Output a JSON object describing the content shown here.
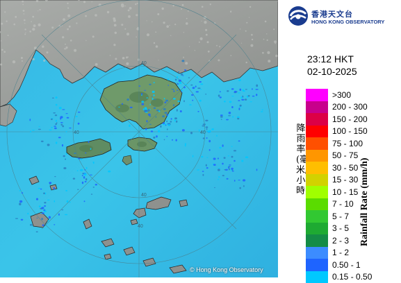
{
  "organization": {
    "name_cn": "香港天文台",
    "name_en": "HONG KONG OBSERVATORY"
  },
  "timestamp": {
    "time": "23:12 HKT",
    "date": "02-10-2025"
  },
  "legend": {
    "title_en": "Rainfall Rate (mm/h)",
    "title_cn": "降雨率(毫米/小時)",
    "items": [
      {
        "label": ">300",
        "color": "#ff00ff"
      },
      {
        "label": "200 - 300",
        "color": "#c8008c"
      },
      {
        "label": "150 - 200",
        "color": "#dc0046"
      },
      {
        "label": "100 - 150",
        "color": "#ff0000"
      },
      {
        "label": "75 - 100",
        "color": "#ff5000"
      },
      {
        "label": "50 - 75",
        "color": "#ff9600"
      },
      {
        "label": "30 - 50",
        "color": "#ffbe00"
      },
      {
        "label": "15 - 30",
        "color": "#d2d200"
      },
      {
        "label": "10 - 15",
        "color": "#a0ff00"
      },
      {
        "label": "7 - 10",
        "color": "#5adc00"
      },
      {
        "label": "5 - 7",
        "color": "#32c832"
      },
      {
        "label": "3 - 5",
        "color": "#1eaa32"
      },
      {
        "label": "2 - 3",
        "color": "#148c46"
      },
      {
        "label": "1 - 2",
        "color": "#3c8cff"
      },
      {
        "label": "0.50 - 1",
        "color": "#1e64ff"
      },
      {
        "label": "0.15 - 0.50",
        "color": "#00c8ff"
      }
    ]
  },
  "map": {
    "range_labels": [
      "40",
      "40",
      "40",
      "40",
      "40"
    ],
    "copyright": "© Hong Kong Observatory"
  }
}
